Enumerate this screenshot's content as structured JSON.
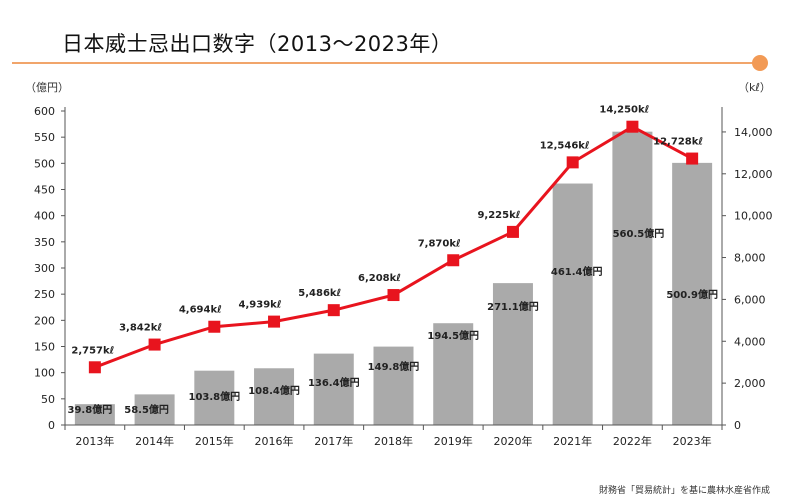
{
  "page": {
    "title": "日本威士忌出口数字（2013～2023年）",
    "source": "財務省「貿易統計」を基に農林水産省作成"
  },
  "chart_data": {
    "type": "bar",
    "title": "日本威士忌出口数字（2013～2023年）",
    "xlabel": "",
    "ylabel": "（億円）",
    "y2label": "（kℓ）",
    "categories": [
      "2013年",
      "2014年",
      "2015年",
      "2016年",
      "2017年",
      "2018年",
      "2019年",
      "2020年",
      "2021年",
      "2022年",
      "2023年"
    ],
    "ylim": [
      0,
      600
    ],
    "y2lim": [
      0,
      15000
    ],
    "yticks": [
      0,
      50,
      100,
      150,
      200,
      250,
      300,
      350,
      400,
      450,
      500,
      550,
      600
    ],
    "y2ticks": [
      0,
      2000,
      4000,
      6000,
      8000,
      10000,
      12000,
      14000
    ],
    "ytick_labels": [
      "0",
      "50",
      "100",
      "150",
      "200",
      "250",
      "300",
      "350",
      "400",
      "450",
      "500",
      "550",
      "600"
    ],
    "y2tick_labels": [
      "0",
      "2,000",
      "4,000",
      "6,000",
      "8,000",
      "10,000",
      "12,000",
      "14,000"
    ],
    "grid": false,
    "series": [
      {
        "type": "bar",
        "axis": "left",
        "values": [
          39.8,
          58.5,
          103.8,
          108.4,
          136.4,
          149.8,
          194.5,
          271.1,
          461.4,
          560.5,
          500.9
        ],
        "labels": [
          "39.8億円",
          "58.5億円",
          "103.8億円",
          "108.4億円",
          "136.4億円",
          "149.8億円",
          "194.5億円",
          "271.1億円",
          "461.4億円",
          "560.5億円",
          "500.9億円"
        ],
        "color": "#aaaaaa"
      },
      {
        "type": "line",
        "axis": "right",
        "values": [
          2757,
          3842,
          4694,
          4939,
          5486,
          6208,
          7870,
          9225,
          12546,
          14250,
          12728
        ],
        "labels": [
          "2,757kℓ",
          "3,842kℓ",
          "4,694kℓ",
          "4,939kℓ",
          "5,486kℓ",
          "6,208kℓ",
          "7,870kℓ",
          "9,225kℓ",
          "12,546kℓ",
          "14,250kℓ",
          "12,728kℓ"
        ],
        "color": "#e8141e"
      }
    ]
  }
}
